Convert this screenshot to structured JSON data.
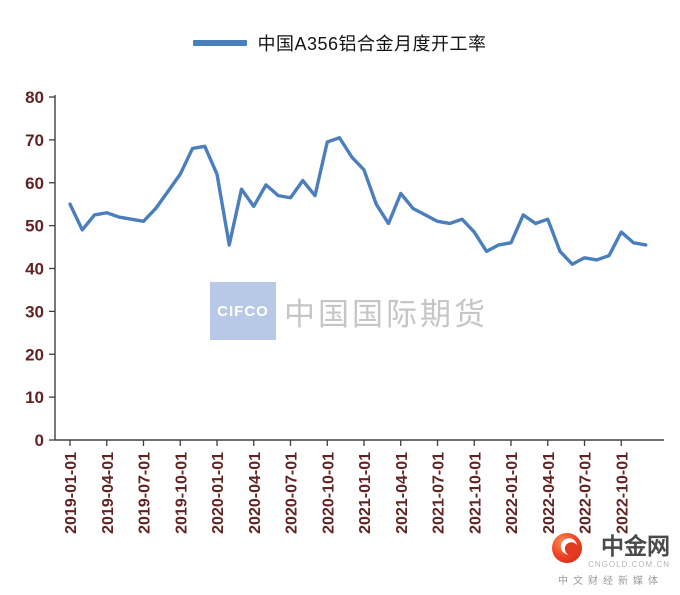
{
  "legend": {
    "label": "中国A356铝合金月度开工率"
  },
  "chart_data": {
    "type": "line",
    "title": "中国A356铝合金月度开工率",
    "series_name": "中国A356铝合金月度开工率",
    "x": [
      "2019-01-01",
      "2019-02-01",
      "2019-03-01",
      "2019-04-01",
      "2019-05-01",
      "2019-06-01",
      "2019-07-01",
      "2019-08-01",
      "2019-09-01",
      "2019-10-01",
      "2019-11-01",
      "2019-12-01",
      "2020-01-01",
      "2020-02-01",
      "2020-03-01",
      "2020-04-01",
      "2020-05-01",
      "2020-06-01",
      "2020-07-01",
      "2020-08-01",
      "2020-09-01",
      "2020-10-01",
      "2020-11-01",
      "2020-12-01",
      "2021-01-01",
      "2021-02-01",
      "2021-03-01",
      "2021-04-01",
      "2021-05-01",
      "2021-06-01",
      "2021-07-01",
      "2021-08-01",
      "2021-09-01",
      "2021-10-01",
      "2021-11-01",
      "2021-12-01",
      "2022-01-01",
      "2022-02-01",
      "2022-03-01",
      "2022-04-01",
      "2022-05-01",
      "2022-06-01",
      "2022-07-01",
      "2022-08-01",
      "2022-09-01",
      "2022-10-01",
      "2022-11-01",
      "2022-12-01"
    ],
    "values": [
      55,
      49,
      52.5,
      53,
      52,
      51.5,
      51,
      54,
      58,
      62,
      68,
      68.5,
      62,
      45.5,
      58.5,
      54.5,
      59.5,
      57,
      56.5,
      60.5,
      57,
      69.5,
      70.5,
      66,
      63,
      55,
      50.5,
      57.5,
      54,
      52.5,
      51,
      50.5,
      51.5,
      48.5,
      44,
      45.5,
      46,
      52.5,
      50.5,
      51.5,
      44,
      41,
      42.5,
      42,
      43,
      48.5,
      46,
      45.5
    ],
    "x_tick_labels": [
      "2019-01-01",
      "2019-04-01",
      "2019-07-01",
      "2019-10-01",
      "2020-01-01",
      "2020-04-01",
      "2020-07-01",
      "2020-10-01",
      "2021-01-01",
      "2021-04-01",
      "2021-07-01",
      "2021-10-01",
      "2022-01-01",
      "2022-04-01",
      "2022-07-01",
      "2022-10-01"
    ],
    "y_ticks": [
      0,
      10,
      20,
      30,
      40,
      50,
      60,
      70,
      80
    ],
    "ylim": [
      0,
      80
    ],
    "grid": false,
    "legend_position": "top-center",
    "line_color": "#4a7ebc",
    "axis_label_color": "#622423",
    "axis_line_color": "#3f3f3f"
  },
  "watermark": {
    "badge": "CIFCO",
    "text": "中国国际期货"
  },
  "logo": {
    "name": "中金网",
    "domain": "CNGOLD.COM.CN",
    "tagline": "中文财经新媒体"
  }
}
